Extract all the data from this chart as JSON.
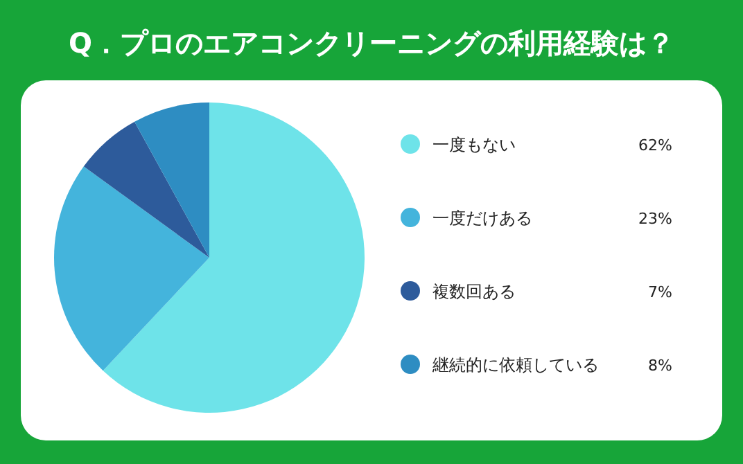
{
  "chart_data": {
    "type": "pie",
    "title": "Q．プロのエアコンクリーニングの利用経験は？",
    "categories": [
      "一度もない",
      "一度だけある",
      "複数回ある",
      "継続的に依頼している"
    ],
    "values": [
      62,
      23,
      7,
      8
    ],
    "value_labels": [
      "62%",
      "23%",
      "7%",
      "8%"
    ],
    "colors": [
      "#6ee3e9",
      "#44b4dc",
      "#2d5b9b",
      "#2e8dc2"
    ],
    "legend": "right"
  }
}
